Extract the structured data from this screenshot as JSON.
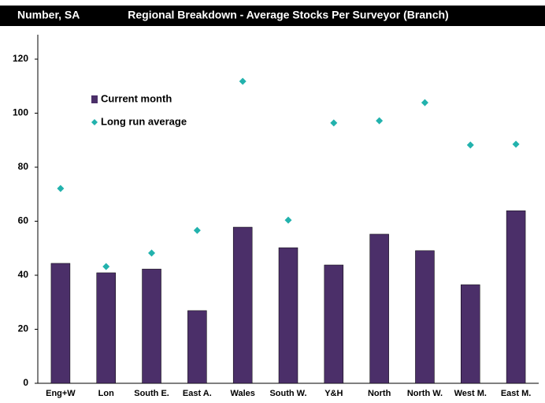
{
  "chart_data": {
    "type": "bar",
    "title": "Regional Breakdown - Average Stocks Per Surveyor (Branch)",
    "subtitle": "Number, SA",
    "categories": [
      "Eng+W",
      "Lon",
      "South E.",
      "East A.",
      "Wales",
      "South W.",
      "Y&H",
      "North",
      "North W.",
      "West M.",
      "East M."
    ],
    "series": [
      {
        "name": "Current month",
        "type": "bar",
        "color": "#4b2f69",
        "values": [
          44.4,
          40.9,
          42.3,
          26.9,
          57.8,
          50.2,
          43.8,
          55.2,
          49.1,
          36.5,
          63.9
        ]
      },
      {
        "name": "Long run average",
        "type": "scatter",
        "color": "#22b2ad",
        "values": [
          72.1,
          43.2,
          48.2,
          56.6,
          111.8,
          60.4,
          96.4,
          97.2,
          103.9,
          88.2,
          88.5
        ]
      }
    ],
    "ylim": [
      0,
      120
    ],
    "yticks": [
      0,
      20,
      40,
      60,
      80,
      100,
      120
    ],
    "grid": false,
    "legend": "upper left"
  }
}
